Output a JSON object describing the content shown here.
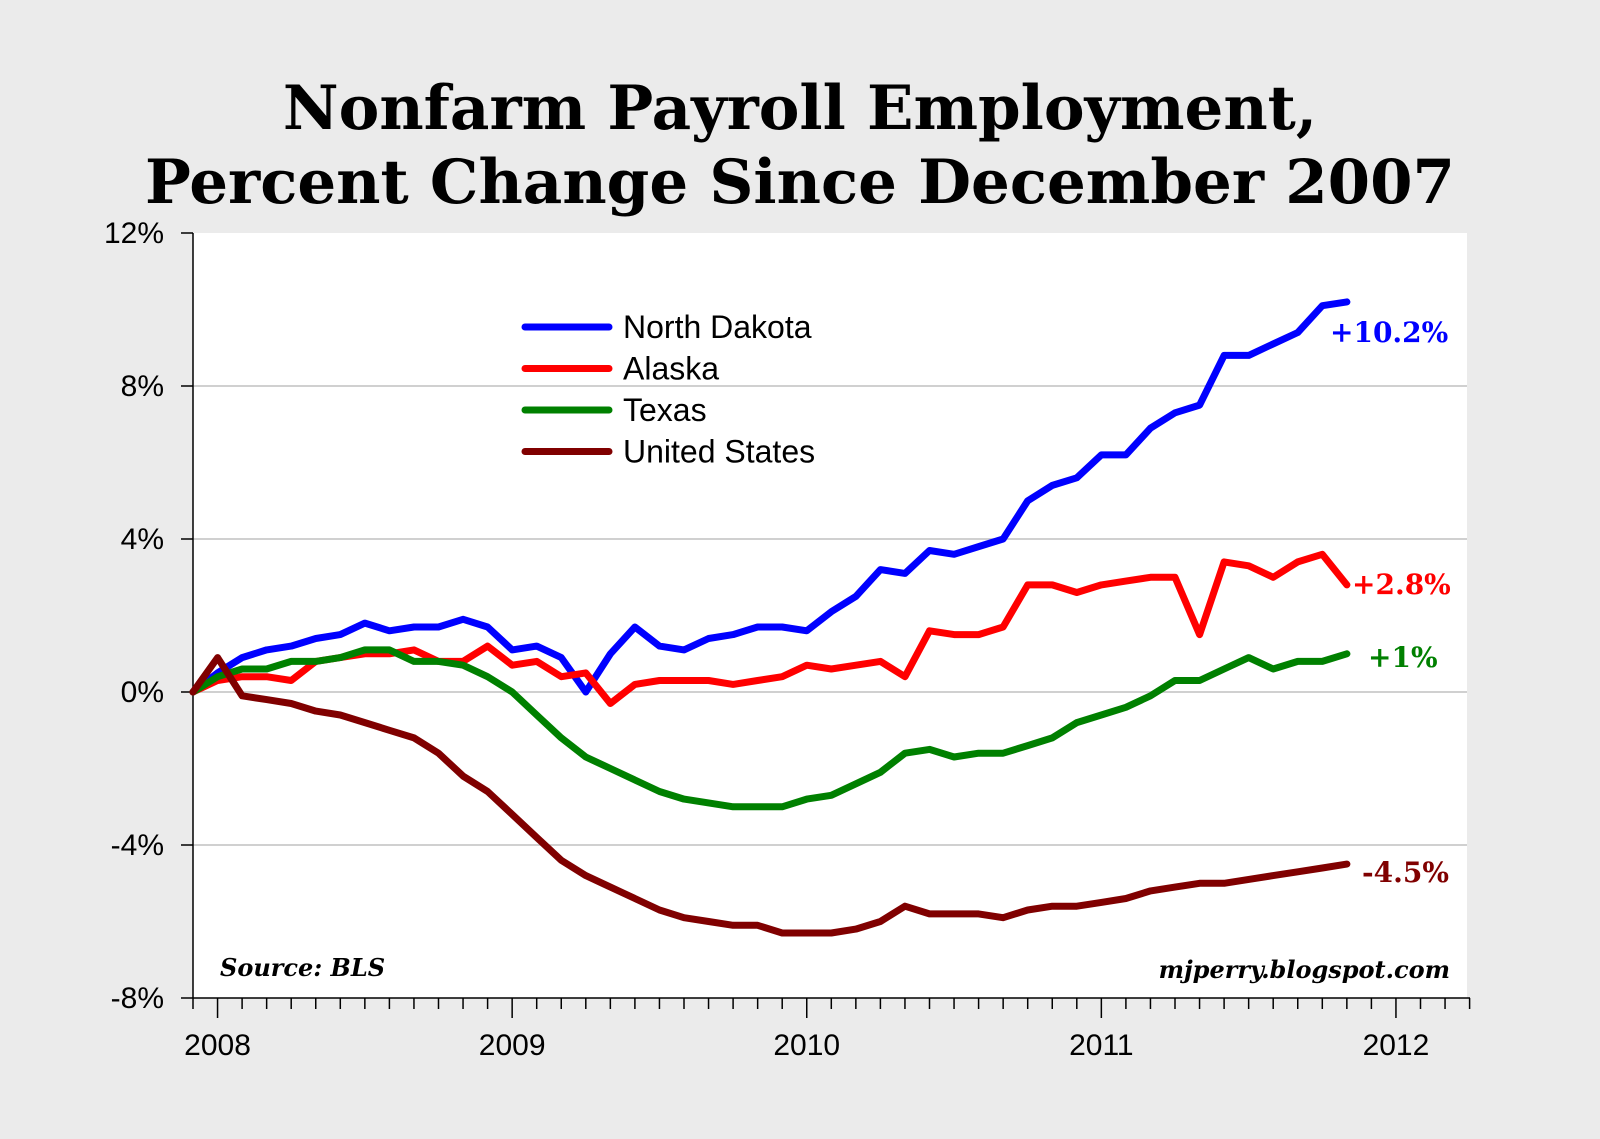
{
  "chart_data": {
    "type": "line",
    "title_lines": [
      "Nonfarm Payroll Employment,",
      "Percent Change Since December 2007"
    ],
    "source_note": "Source: BLS",
    "watermark": "mjperry.blogspot.com",
    "y_ticks": [
      "12%",
      "8%",
      "4%",
      "0%",
      "-4%",
      "-8%"
    ],
    "x_ticks": [
      "2008",
      "2009",
      "2010",
      "2011",
      "2012"
    ],
    "ylim": [
      -8,
      12
    ],
    "grid": true,
    "legend_placement": "top-center",
    "x": [
      "Dec 2007",
      "Jan 2008",
      "Feb 2008",
      "Mar 2008",
      "Apr 2008",
      "May 2008",
      "Jun 2008",
      "Jul 2008",
      "Aug 2008",
      "Sep 2008",
      "Oct 2008",
      "Nov 2008",
      "Dec 2008",
      "Jan 2009",
      "Feb 2009",
      "Mar 2009",
      "Apr 2009",
      "May 2009",
      "Jun 2009",
      "Jul 2009",
      "Aug 2009",
      "Sep 2009",
      "Oct 2009",
      "Nov 2009",
      "Dec 2009",
      "Jan 2010",
      "Feb 2010",
      "Mar 2010",
      "Apr 2010",
      "May 2010",
      "Jun 2010",
      "Jul 2010",
      "Aug 2010",
      "Sep 2010",
      "Oct 2010",
      "Nov 2010",
      "Dec 2010",
      "Jan 2011",
      "Feb 2011",
      "Mar 2011",
      "Apr 2011",
      "May 2011",
      "Jun 2011",
      "Jul 2011",
      "Aug 2011",
      "Sep 2011",
      "Oct 2011",
      "Nov 2011"
    ],
    "series": [
      {
        "name": "North Dakota",
        "color": "#0000ff",
        "end_label": "+10.2%",
        "values": [
          0.0,
          0.5,
          0.9,
          1.1,
          1.2,
          1.4,
          1.5,
          1.8,
          1.6,
          1.7,
          1.7,
          1.9,
          1.7,
          1.1,
          1.2,
          0.9,
          0.0,
          1.0,
          1.7,
          1.2,
          1.1,
          1.4,
          1.5,
          1.7,
          1.7,
          1.6,
          2.1,
          2.5,
          3.2,
          3.1,
          3.7,
          3.6,
          3.8,
          4.0,
          5.0,
          5.4,
          5.6,
          6.2,
          6.2,
          6.9,
          7.3,
          7.5,
          8.8,
          8.8,
          9.1,
          9.4,
          10.1,
          10.2
        ]
      },
      {
        "name": "Alaska",
        "color": "#ff0000",
        "end_label": "+2.8%",
        "values": [
          0.0,
          0.3,
          0.4,
          0.4,
          0.3,
          0.8,
          0.9,
          1.0,
          1.0,
          1.1,
          0.8,
          0.8,
          1.2,
          0.7,
          0.8,
          0.4,
          0.5,
          -0.3,
          0.2,
          0.3,
          0.3,
          0.3,
          0.2,
          0.3,
          0.4,
          0.7,
          0.6,
          0.7,
          0.8,
          0.4,
          1.6,
          1.5,
          1.5,
          1.7,
          2.8,
          2.8,
          2.6,
          2.8,
          2.9,
          3.0,
          3.0,
          1.5,
          3.4,
          3.3,
          3.0,
          3.4,
          3.6,
          2.8
        ]
      },
      {
        "name": "Texas",
        "color": "#008000",
        "end_label": "+1%",
        "values": [
          0.0,
          0.4,
          0.6,
          0.6,
          0.8,
          0.8,
          0.9,
          1.1,
          1.1,
          0.8,
          0.8,
          0.7,
          0.4,
          0.0,
          -0.6,
          -1.2,
          -1.7,
          -2.0,
          -2.3,
          -2.6,
          -2.8,
          -2.9,
          -3.0,
          -3.0,
          -3.0,
          -2.8,
          -2.7,
          -2.4,
          -2.1,
          -1.6,
          -1.5,
          -1.7,
          -1.6,
          -1.6,
          -1.4,
          -1.2,
          -0.8,
          -0.6,
          -0.4,
          -0.1,
          0.3,
          0.3,
          0.6,
          0.9,
          0.6,
          0.8,
          0.8,
          1.0
        ]
      },
      {
        "name": "United States",
        "color": "#800000",
        "end_label": "-4.5%",
        "values": [
          0.0,
          0.9,
          -0.1,
          -0.2,
          -0.3,
          -0.5,
          -0.6,
          -0.8,
          -1.0,
          -1.2,
          -1.6,
          -2.2,
          -2.6,
          -3.2,
          -3.8,
          -4.4,
          -4.8,
          -5.1,
          -5.4,
          -5.7,
          -5.9,
          -6.0,
          -6.1,
          -6.1,
          -6.3,
          -6.3,
          -6.3,
          -6.2,
          -6.0,
          -5.6,
          -5.8,
          -5.8,
          -5.8,
          -5.9,
          -5.7,
          -5.6,
          -5.6,
          -5.5,
          -5.4,
          -5.2,
          -5.1,
          -5.0,
          -5.0,
          -4.9,
          -4.8,
          -4.7,
          -4.6,
          -4.5
        ]
      }
    ]
  }
}
